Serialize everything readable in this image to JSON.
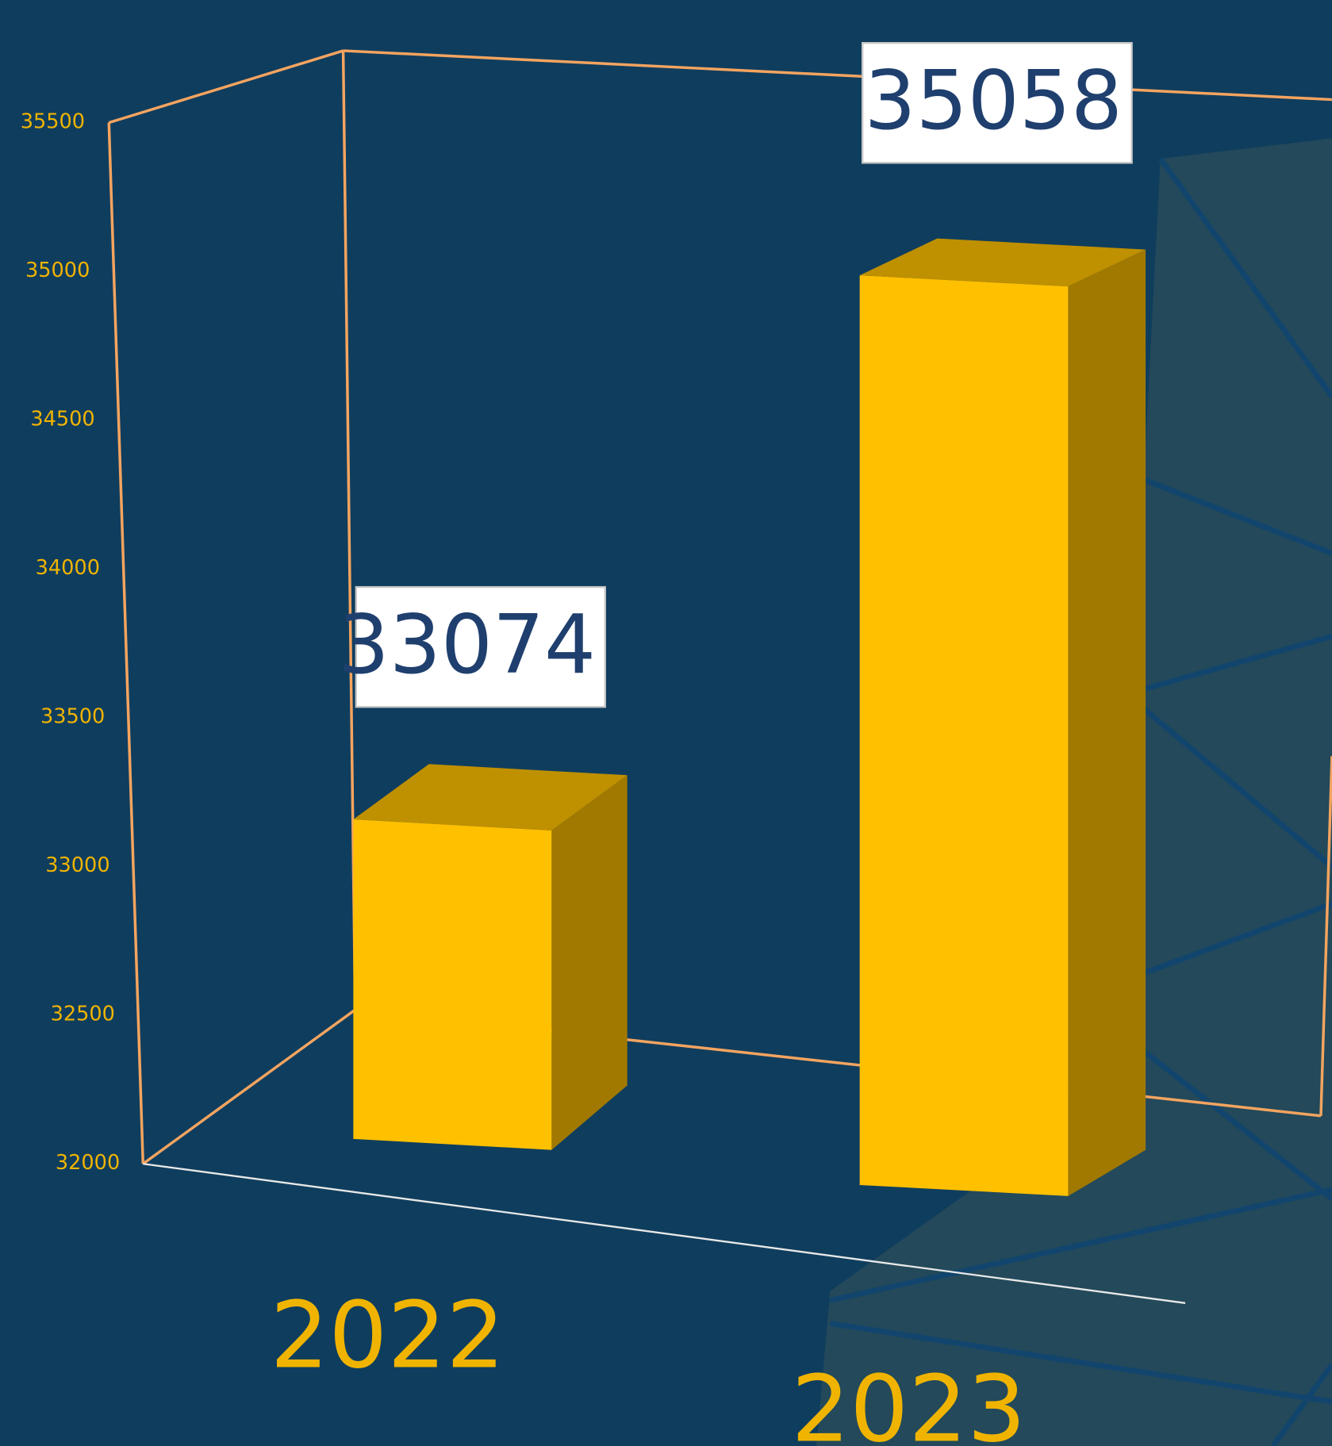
{
  "chart_data": {
    "type": "bar3d",
    "categories": [
      "2022",
      "2023"
    ],
    "values": [
      33074,
      35058
    ],
    "color": "#ffc000",
    "ylim": [
      32000,
      35500
    ],
    "yticks": [
      32000,
      32500,
      33000,
      33500,
      34000,
      34500,
      35000,
      35500
    ],
    "grid": false
  }
}
